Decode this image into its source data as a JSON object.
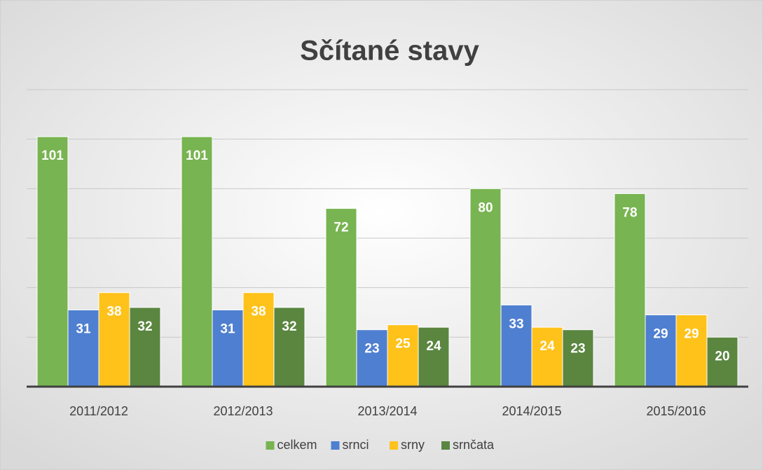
{
  "chart_data": {
    "type": "bar",
    "title": "Sčítané stavy",
    "categories": [
      "2011/2012",
      "2012/2013",
      "2013/2014",
      "2014/2015",
      "2015/2016"
    ],
    "series": [
      {
        "name": "celkem",
        "color": "#78b451",
        "values": [
          101,
          101,
          72,
          80,
          78
        ]
      },
      {
        "name": "srnci",
        "color": "#4f7fd0",
        "values": [
          31,
          31,
          23,
          33,
          29
        ]
      },
      {
        "name": "srny",
        "color": "#ffc21a",
        "values": [
          38,
          38,
          25,
          24,
          29
        ]
      },
      {
        "name": "srnčata",
        "color": "#5a8640",
        "values": [
          32,
          32,
          24,
          23,
          20
        ]
      }
    ],
    "ylim": [
      0,
      120
    ],
    "yticks": [
      0,
      20,
      40,
      60,
      80,
      100,
      120
    ],
    "grid": true,
    "legend": "bottom"
  }
}
